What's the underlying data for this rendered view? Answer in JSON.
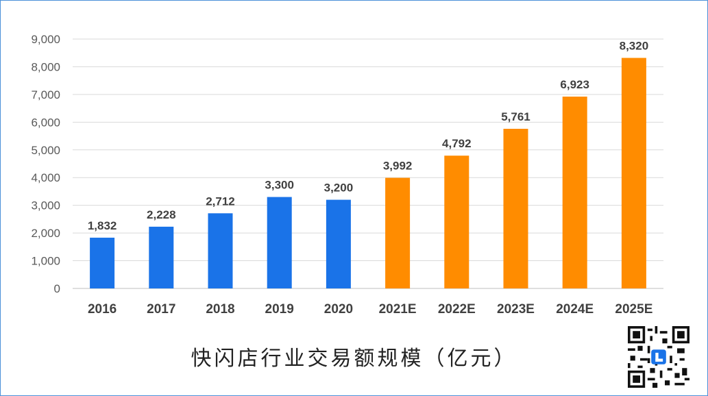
{
  "chart_data": {
    "type": "bar",
    "title": "快闪店行业交易额规模（亿元）",
    "categories": [
      "2016",
      "2017",
      "2018",
      "2019",
      "2020",
      "2021E",
      "2022E",
      "2023E",
      "2024E",
      "2025E"
    ],
    "values": [
      1832,
      2228,
      2712,
      3300,
      3200,
      3992,
      4792,
      5761,
      6923,
      8320
    ],
    "value_labels": [
      "1,832",
      "2,228",
      "2,712",
      "3,300",
      "3,200",
      "3,992",
      "4,792",
      "5,761",
      "6,923",
      "8,320"
    ],
    "ylim": [
      0,
      9000
    ],
    "yticks": [
      "0",
      "1,000",
      "2,000",
      "3,000",
      "4,000",
      "5,000",
      "6,000",
      "7,000",
      "8,000",
      "9,000"
    ],
    "grid": true,
    "colors": {
      "actual": "#1a73e8",
      "estimate": "#ff8c00",
      "grid": "#d9d9d9"
    },
    "estimate_categories": [
      "2021E",
      "2022E",
      "2023E",
      "2024E",
      "2025E"
    ]
  }
}
